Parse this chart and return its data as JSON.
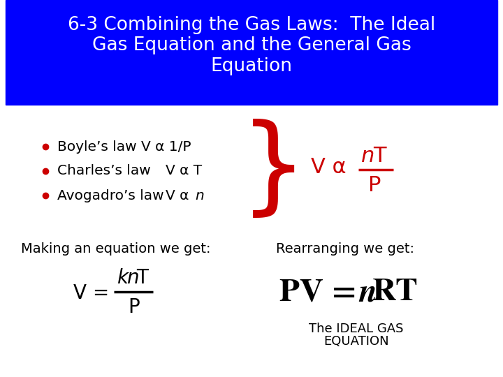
{
  "title_line1": "6-3 Combining the Gas Laws:  The Ideal",
  "title_line2": "Gas Equation and the General Gas",
  "title_line3": "Equation",
  "title_bg": "#0000FF",
  "title_color": "#FFFFFF",
  "bg_color": "#FFFFFF",
  "bullet_color": "#000000",
  "red_color": "#CC0000",
  "bullet1_pre": "Boyle’s law V α 1/P",
  "bullet2_pre": "Charles’s law",
  "bullet2_post": "V α T",
  "bullet3_pre": "Avogadro’s law",
  "bullet3_mid": "V α ",
  "making_text": "Making an equation we get:",
  "rearranging_text": "Rearranging we get:",
  "ideal_text1": "The IDEAL GAS",
  "ideal_text2": "EQUATION"
}
